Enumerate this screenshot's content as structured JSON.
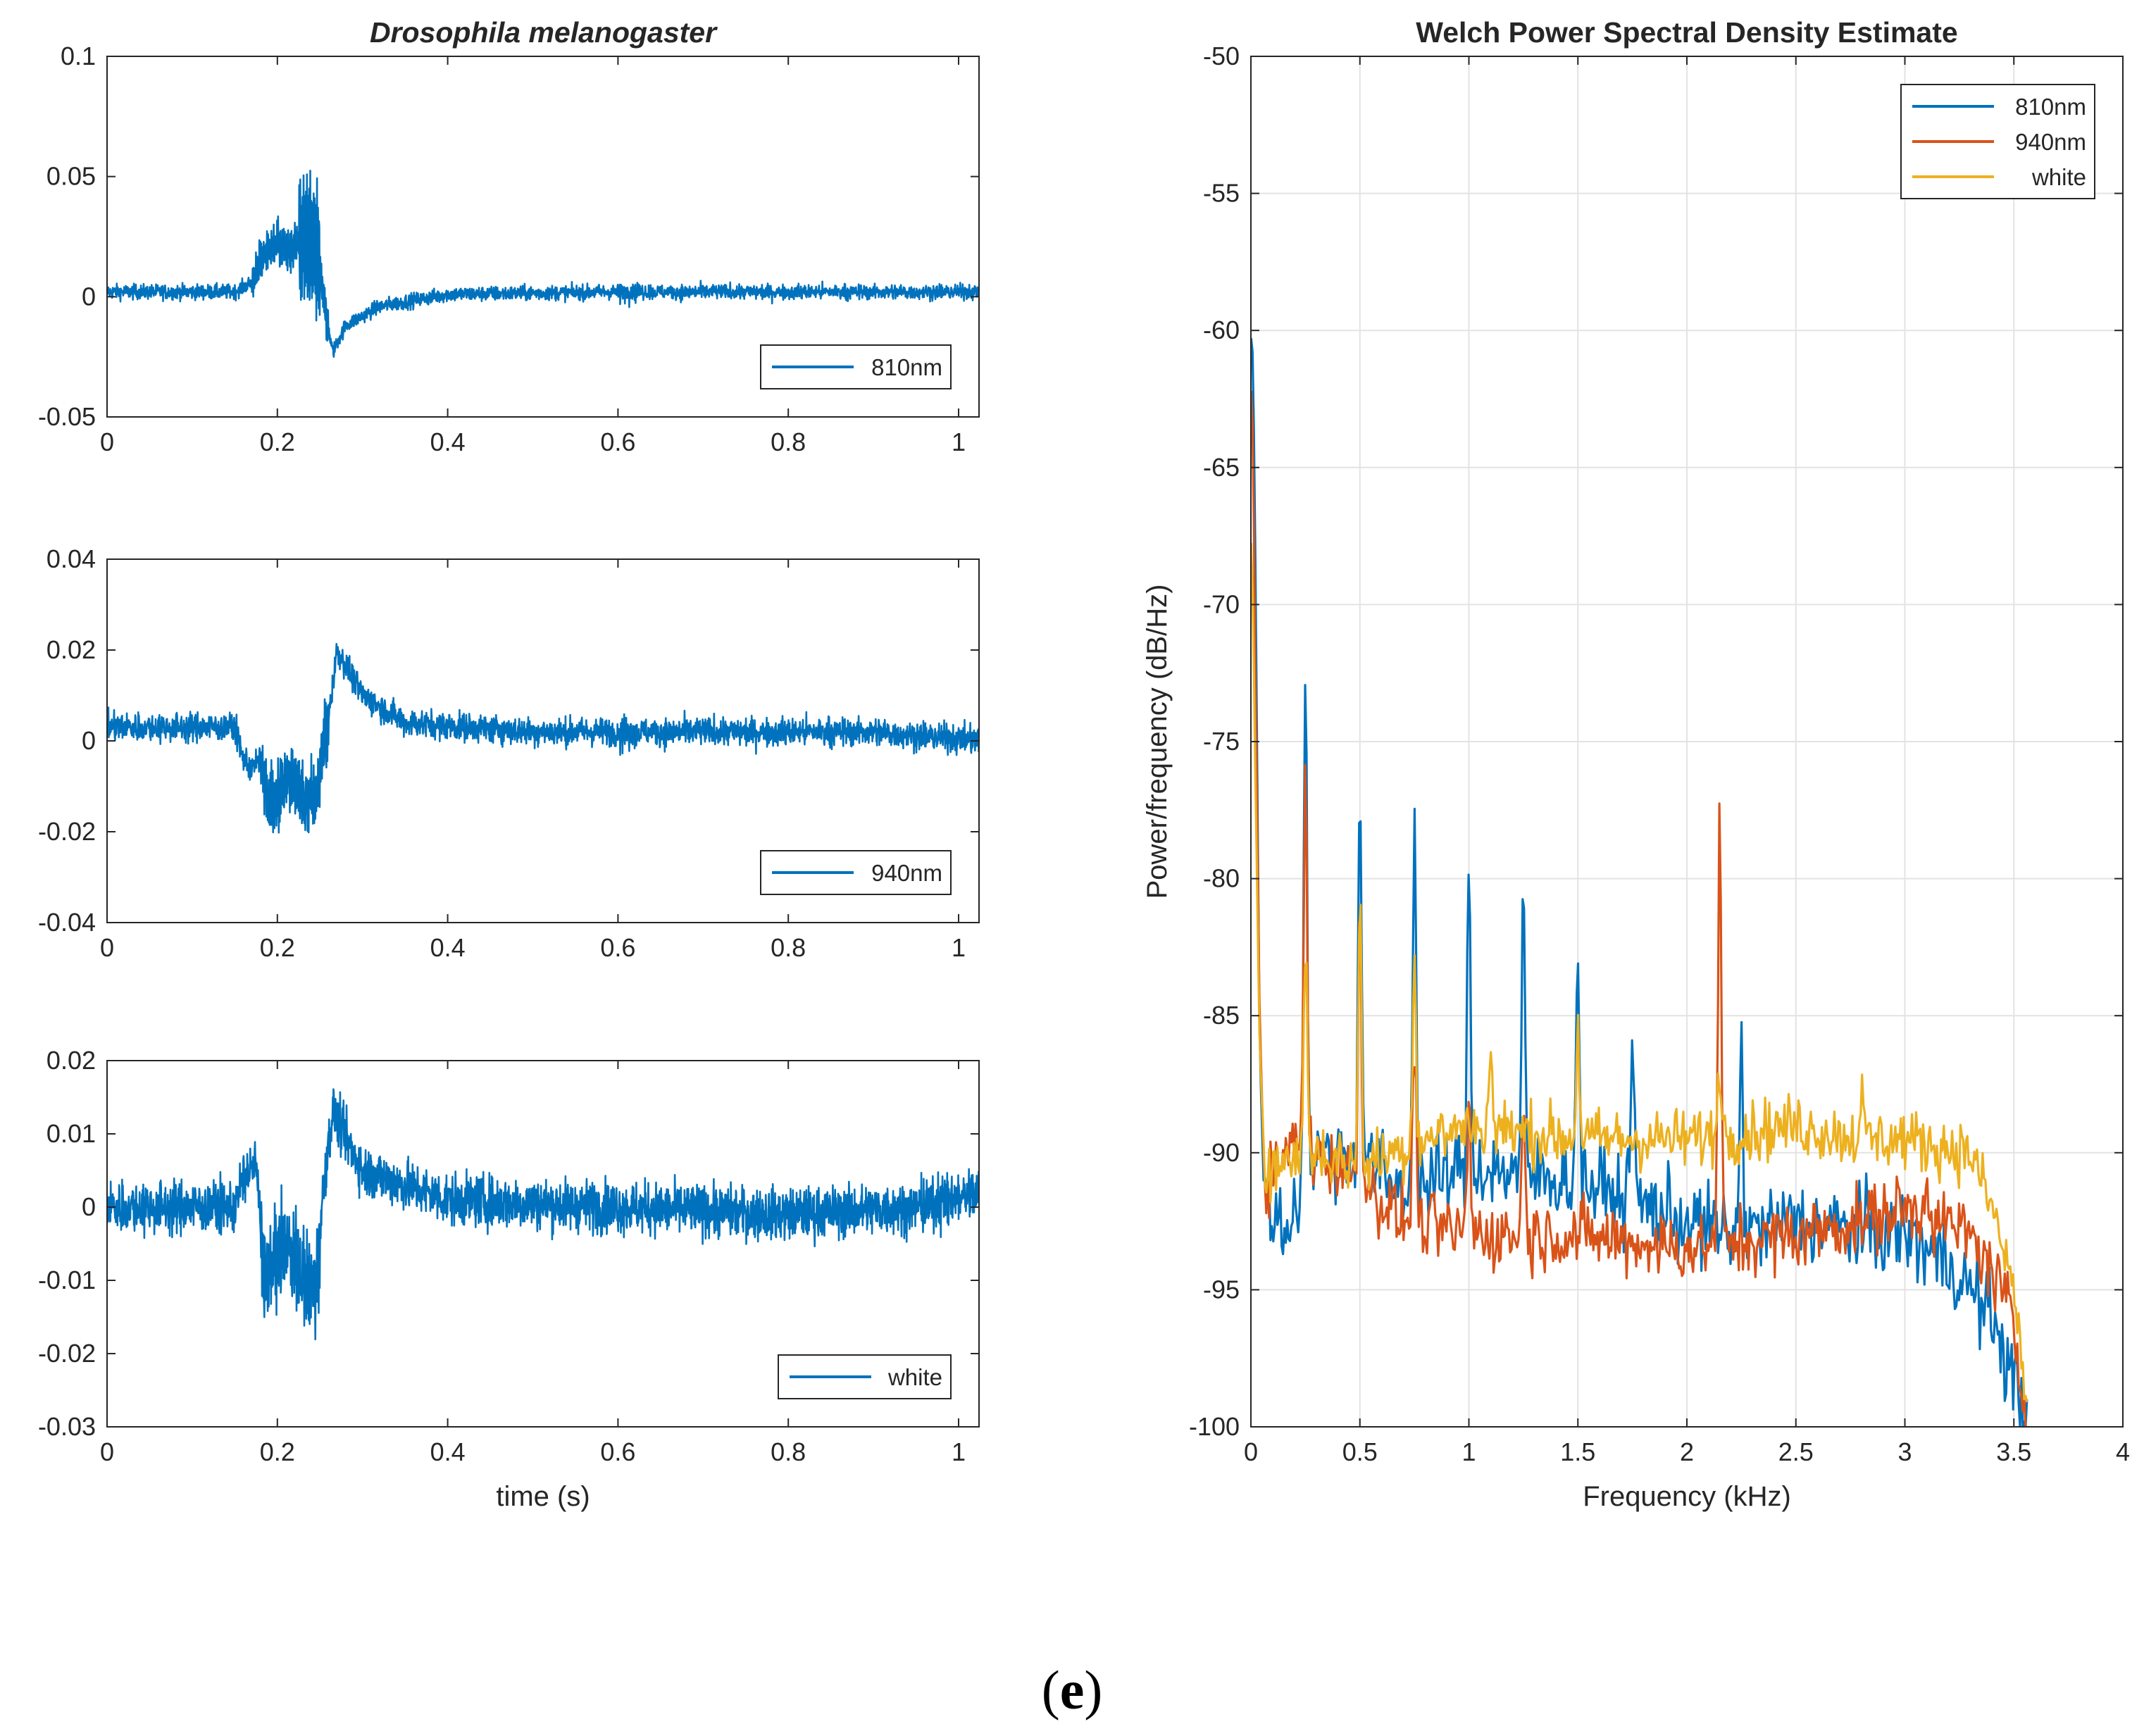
{
  "panel_label": {
    "open": "(",
    "letter": "e",
    "close": ")"
  },
  "colors": {
    "c810": "#0072BD",
    "c940": "#D95319",
    "cwhite": "#EDB120",
    "grid": "#e3e3e3",
    "axis": "#262626"
  },
  "chart_data": [
    {
      "type": "line",
      "id": "ts810",
      "title": "Drosophila melanogaster",
      "title_style": "bold-italic",
      "xlabel": "",
      "ylabel": "",
      "xlim": [
        0,
        1.024
      ],
      "ylim": [
        -0.05,
        0.1
      ],
      "xticks": [
        0,
        0.2,
        0.4,
        0.6,
        0.8,
        1
      ],
      "xtick_labels": [
        "0",
        "0.2",
        "0.4",
        "0.6",
        "0.8",
        "1"
      ],
      "yticks": [
        -0.05,
        0,
        0.05,
        0.1
      ],
      "ytick_labels": [
        "-0.05",
        "0",
        "0.05",
        "0.1"
      ],
      "grid": false,
      "legend": {
        "entries": [
          "810nm"
        ],
        "position": "bottom-right"
      },
      "series": [
        {
          "name": "810nm",
          "color": "#0072BD",
          "noise": 0.0022,
          "keypoints": [
            [
              0,
              0.002
            ],
            [
              0.15,
              0.002
            ],
            [
              0.17,
              0.006
            ],
            [
              0.185,
              0.018
            ],
            [
              0.2,
              0.022
            ],
            [
              0.215,
              0.02
            ],
            [
              0.23,
              0.024
            ],
            [
              0.245,
              0.02
            ],
            [
              0.252,
              0.008
            ],
            [
              0.258,
              -0.01
            ],
            [
              0.265,
              -0.023
            ],
            [
              0.28,
              -0.012
            ],
            [
              0.32,
              -0.004
            ],
            [
              0.4,
              0.001
            ],
            [
              0.6,
              0.002
            ],
            [
              0.8,
              0.002
            ],
            [
              1.024,
              0.002
            ]
          ],
          "bursts": [
            [
              0.17,
              0.26,
              0.009
            ],
            [
              0.225,
              0.25,
              0.026
            ],
            [
              0.6,
              0.625,
              0.003
            ]
          ]
        }
      ]
    },
    {
      "type": "line",
      "id": "ts940",
      "title": "",
      "xlabel": "",
      "ylabel": "",
      "xlim": [
        0,
        1.024
      ],
      "ylim": [
        -0.04,
        0.04
      ],
      "xticks": [
        0,
        0.2,
        0.4,
        0.6,
        0.8,
        1
      ],
      "xtick_labels": [
        "0",
        "0.2",
        "0.4",
        "0.6",
        "0.8",
        "1"
      ],
      "yticks": [
        -0.04,
        -0.02,
        0,
        0.02,
        0.04
      ],
      "ytick_labels": [
        "-0.04",
        "-0.02",
        "0",
        "0.02",
        "0.04"
      ],
      "grid": false,
      "legend": {
        "entries": [
          "940nm"
        ],
        "position": "bottom-right"
      },
      "series": [
        {
          "name": "940nm",
          "color": "#0072BD",
          "noise": 0.0022,
          "keypoints": [
            [
              0,
              0.003
            ],
            [
              0.15,
              0.003
            ],
            [
              0.16,
              -0.004
            ],
            [
              0.17,
              -0.006
            ],
            [
              0.18,
              -0.004
            ],
            [
              0.19,
              -0.014
            ],
            [
              0.2,
              -0.012
            ],
            [
              0.215,
              -0.008
            ],
            [
              0.23,
              -0.013
            ],
            [
              0.245,
              -0.012
            ],
            [
              0.26,
              0.005
            ],
            [
              0.27,
              0.02
            ],
            [
              0.3,
              0.01
            ],
            [
              0.35,
              0.004
            ],
            [
              0.5,
              0.002
            ],
            [
              0.7,
              0.002
            ],
            [
              0.9,
              0.002
            ],
            [
              1.024,
              0.0
            ]
          ],
          "bursts": [
            [
              0.18,
              0.26,
              0.008
            ],
            [
              0.6,
              0.62,
              0.003
            ]
          ]
        }
      ]
    },
    {
      "type": "line",
      "id": "tswhite",
      "title": "",
      "xlabel": "time (s)",
      "ylabel": "",
      "xlim": [
        0,
        1.024
      ],
      "ylim": [
        -0.03,
        0.02
      ],
      "xticks": [
        0,
        0.2,
        0.4,
        0.6,
        0.8,
        1
      ],
      "xtick_labels": [
        "0",
        "0.2",
        "0.4",
        "0.6",
        "0.8",
        "1"
      ],
      "yticks": [
        -0.03,
        -0.02,
        -0.01,
        0,
        0.01,
        0.02
      ],
      "ytick_labels": [
        "-0.03",
        "-0.02",
        "-0.01",
        "0",
        "0.01",
        "0.02"
      ],
      "grid": false,
      "legend": {
        "entries": [
          "white"
        ],
        "position": "bottom-right"
      },
      "series": [
        {
          "name": "white",
          "color": "#0072BD",
          "noise": 0.0025,
          "keypoints": [
            [
              0,
              0.0
            ],
            [
              0.15,
              0.0
            ],
            [
              0.16,
              0.004
            ],
            [
              0.175,
              0.006
            ],
            [
              0.185,
              -0.01
            ],
            [
              0.2,
              -0.006
            ],
            [
              0.215,
              -0.005
            ],
            [
              0.23,
              -0.01
            ],
            [
              0.245,
              -0.012
            ],
            [
              0.255,
              0.004
            ],
            [
              0.265,
              0.013
            ],
            [
              0.3,
              0.005
            ],
            [
              0.4,
              0.001
            ],
            [
              0.6,
              0.0
            ],
            [
              0.8,
              -0.001
            ],
            [
              0.95,
              0.0
            ],
            [
              1.024,
              0.002
            ]
          ],
          "bursts": [
            [
              0.18,
              0.25,
              0.006
            ],
            [
              0.95,
              1.024,
              0.0015
            ]
          ]
        }
      ]
    },
    {
      "type": "line",
      "id": "psd",
      "title": "Welch Power Spectral Density Estimate",
      "xlabel": "Frequency (kHz)",
      "ylabel": "Power/frequency (dB/Hz)",
      "xlim": [
        0,
        4
      ],
      "ylim": [
        -100,
        -50
      ],
      "xticks": [
        0,
        0.5,
        1,
        1.5,
        2,
        2.5,
        3,
        3.5,
        4
      ],
      "xtick_labels": [
        "0",
        "0.5",
        "1",
        "1.5",
        "2",
        "2.5",
        "3",
        "3.5",
        "4"
      ],
      "yticks": [
        -100,
        -95,
        -90,
        -85,
        -80,
        -75,
        -70,
        -65,
        -60,
        -55,
        -50
      ],
      "ytick_labels": [
        "-100",
        "-95",
        "-90",
        "-85",
        "-80",
        "-75",
        "-70",
        "-65",
        "-60",
        "-55",
        "-50"
      ],
      "grid": true,
      "legend": {
        "entries": [
          "810nm",
          "940nm",
          "white"
        ],
        "position": "top-right"
      },
      "series": [
        {
          "name": "810nm",
          "color": "#0072BD",
          "noise": 1.1,
          "baseline": [
            [
              0.04,
              -91.5
            ],
            [
              0.1,
              -92.0
            ],
            [
              0.15,
              -93.0
            ],
            [
              0.3,
              -90.0
            ],
            [
              0.5,
              -90.0
            ],
            [
              0.7,
              -91.5
            ],
            [
              1.0,
              -90.5
            ],
            [
              1.5,
              -91.0
            ],
            [
              2.0,
              -92.5
            ],
            [
              2.2,
              -93.0
            ],
            [
              2.5,
              -92.5
            ],
            [
              3.0,
              -93.0
            ],
            [
              3.2,
              -94.0
            ],
            [
              3.3,
              -95.0
            ],
            [
              3.4,
              -96.0
            ],
            [
              3.55,
              -99.5
            ]
          ],
          "start": [
            [
              0,
              -60.2
            ],
            [
              0.01,
              -61.0
            ],
            [
              0.02,
              -68.0
            ],
            [
              0.04,
              -86.0
            ],
            [
              0.06,
              -91.5
            ]
          ],
          "peaks": [
            [
              0.25,
              -72.2
            ],
            [
              0.5,
              -76.5
            ],
            [
              0.75,
              -77.4
            ],
            [
              1.0,
              -79.9
            ],
            [
              1.25,
              -81.3
            ],
            [
              1.5,
              -82.8
            ],
            [
              1.75,
              -85.1
            ],
            [
              2.25,
              -86.2
            ]
          ]
        },
        {
          "name": "940nm",
          "color": "#D95319",
          "noise": 0.9,
          "baseline": [
            [
              0.04,
              -91.0
            ],
            [
              0.1,
              -91.0
            ],
            [
              0.2,
              -89.5
            ],
            [
              0.5,
              -91.0
            ],
            [
              0.7,
              -92.5
            ],
            [
              1.0,
              -93.0
            ],
            [
              1.5,
              -93.0
            ],
            [
              2.0,
              -93.5
            ],
            [
              2.5,
              -93.0
            ],
            [
              2.8,
              -92.5
            ],
            [
              3.0,
              -92.0
            ],
            [
              3.3,
              -93.0
            ],
            [
              3.45,
              -95.0
            ],
            [
              3.5,
              -96.5
            ],
            [
              3.56,
              -100
            ]
          ],
          "start": [
            [
              0,
              -62.0
            ],
            [
              0.01,
              -64.0
            ],
            [
              0.02,
              -72.0
            ],
            [
              0.04,
              -85.0
            ],
            [
              0.06,
              -90.5
            ]
          ],
          "peaks": [
            [
              0.25,
              -76.2
            ],
            [
              0.5,
              -81.0
            ],
            [
              0.75,
              -85.5
            ],
            [
              1.0,
              -88.0
            ],
            [
              1.25,
              -88.5
            ],
            [
              2.15,
              -78.2
            ],
            [
              3.1,
              -90.5
            ]
          ]
        },
        {
          "name": "white",
          "color": "#EDB120",
          "noise": 0.8,
          "baseline": [
            [
              0.04,
              -90.0
            ],
            [
              0.1,
              -90.5
            ],
            [
              0.3,
              -90.0
            ],
            [
              0.5,
              -90.5
            ],
            [
              0.8,
              -89.5
            ],
            [
              1.0,
              -89.0
            ],
            [
              1.5,
              -89.5
            ],
            [
              2.0,
              -89.5
            ],
            [
              2.5,
              -89.0
            ],
            [
              2.8,
              -89.5
            ],
            [
              3.0,
              -89.5
            ],
            [
              3.3,
              -90.0
            ],
            [
              3.4,
              -92.0
            ],
            [
              3.5,
              -95.0
            ],
            [
              3.57,
              -100
            ]
          ],
          "start": [
            [
              0,
              -67.5
            ],
            [
              0.01,
              -70.0
            ],
            [
              0.02,
              -76.0
            ],
            [
              0.04,
              -86.0
            ],
            [
              0.06,
              -90.0
            ]
          ],
          "peaks": [
            [
              0.25,
              -82.0
            ],
            [
              0.5,
              -81.0
            ],
            [
              0.75,
              -83.0
            ],
            [
              1.1,
              -86.5
            ],
            [
              1.5,
              -85.5
            ],
            [
              2.15,
              -86.5
            ],
            [
              2.8,
              -87.8
            ]
          ]
        }
      ]
    }
  ]
}
